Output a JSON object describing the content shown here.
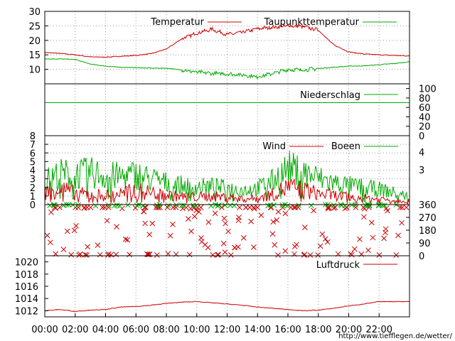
{
  "colors": {
    "temperature": "#cc0000",
    "dewpoint": "#00aa00",
    "precipitation": "#00aa00",
    "wind": "#cc0000",
    "gusts": "#00aa00",
    "direction_wind": "#cc0000",
    "direction_gusts": "#00aa00",
    "pressure": "#cc0000",
    "frame": "#000000",
    "grid": "#999999",
    "url": "#cc0000"
  },
  "footer_url": "http://www.tiefflegen.de/wetter/",
  "x_ticks": [
    "00:00",
    "02:00",
    "04:00",
    "06:00",
    "08:00",
    "10:00",
    "12:00",
    "14:00",
    "16:00",
    "18:00",
    "20:00",
    "22:00"
  ],
  "chart_data": [
    {
      "id": "temperature",
      "type": "line",
      "x": [
        "00:00",
        "01:00",
        "02:00",
        "03:00",
        "04:00",
        "05:00",
        "06:00",
        "07:00",
        "08:00",
        "09:00",
        "10:00",
        "11:00",
        "12:00",
        "13:00",
        "14:00",
        "15:00",
        "16:00",
        "17:00",
        "18:00",
        "19:00",
        "20:00",
        "21:00",
        "22:00",
        "23:00",
        "24:00"
      ],
      "series": [
        {
          "name": "Temperatur",
          "values": [
            15.8,
            15.5,
            15.0,
            14.3,
            14.2,
            14.5,
            14.8,
            15.4,
            17.0,
            20.5,
            22.5,
            23.8,
            22.0,
            22.8,
            24.0,
            24.5,
            25.0,
            24.8,
            23.5,
            18.5,
            16.0,
            15.3,
            15.0,
            14.8,
            14.6
          ]
        },
        {
          "name": "Taupunkttemperatur",
          "values": [
            13.6,
            13.6,
            13.4,
            11.8,
            11.1,
            10.7,
            10.6,
            10.4,
            10.4,
            9.8,
            9.0,
            8.6,
            8.4,
            8.1,
            7.4,
            8.6,
            9.9,
            9.8,
            10.3,
            10.7,
            11.1,
            11.2,
            11.6,
            12.0,
            12.6
          ]
        }
      ],
      "ylim": [
        5,
        30
      ],
      "yticks": [
        10,
        15,
        20,
        25,
        30
      ],
      "grid": true,
      "legend": "top-right"
    },
    {
      "id": "precipitation",
      "type": "line",
      "series": [
        {
          "name": "Niederschlag",
          "values": [
            70,
            70
          ]
        }
      ],
      "x": [
        "00:00",
        "24:00"
      ],
      "ylim": [
        0,
        110
      ],
      "yticks_right": [
        0,
        20,
        40,
        60,
        80,
        100
      ],
      "legend": "top-right"
    },
    {
      "id": "wind",
      "type": "line",
      "x_range": [
        "00:00",
        "24:00"
      ],
      "series": [
        {
          "name": "Wind",
          "values": [
            1.4,
            1.8,
            1.2,
            1.1,
            1.0,
            1.2,
            1.5,
            1.3,
            1.0,
            0.9,
            0.8,
            0.9,
            0.8,
            0.6,
            0.7,
            1.1,
            1.9,
            1.6,
            1.2,
            1.0,
            0.8,
            0.7,
            0.6,
            0.5,
            0.4
          ]
        },
        {
          "name": "Boeen",
          "values": [
            2.6,
            3.4,
            3.3,
            3.5,
            3.2,
            3.1,
            3.3,
            2.8,
            2.4,
            2.1,
            1.9,
            2.0,
            1.8,
            1.6,
            1.8,
            2.6,
            4.0,
            3.5,
            2.9,
            2.4,
            2.1,
            1.9,
            1.7,
            1.3,
            0.9
          ]
        }
      ],
      "ylim": [
        0,
        8
      ],
      "yticks": [
        0,
        1,
        2,
        3,
        4,
        5,
        6,
        7,
        8
      ],
      "right_labels": [
        "4",
        "3"
      ],
      "grid": true,
      "legend": "top-right"
    },
    {
      "id": "direction",
      "type": "scatter",
      "ylim": [
        0,
        360
      ],
      "yticks_right": [
        0,
        90,
        180,
        270,
        360
      ]
    },
    {
      "id": "pressure",
      "type": "line",
      "x": [
        "00:00",
        "01:00",
        "02:00",
        "03:00",
        "04:00",
        "05:00",
        "06:00",
        "07:00",
        "08:00",
        "09:00",
        "10:00",
        "11:00",
        "12:00",
        "13:00",
        "14:00",
        "15:00",
        "16:00",
        "17:00",
        "18:00",
        "19:00",
        "20:00",
        "21:00",
        "22:00",
        "23:00",
        "24:00"
      ],
      "series": [
        {
          "name": "Luftdruck",
          "values": [
            1012.0,
            1012.2,
            1011.9,
            1012.1,
            1012.2,
            1012.6,
            1012.7,
            1012.9,
            1013.2,
            1013.4,
            1013.5,
            1013.3,
            1013.1,
            1012.9,
            1012.6,
            1012.4,
            1012.2,
            1012.0,
            1012.1,
            1012.4,
            1012.8,
            1013.1,
            1013.5,
            1013.5,
            1013.5
          ]
        }
      ],
      "ylim": [
        1011,
        1021
      ],
      "yticks": [
        1012,
        1014,
        1016,
        1018,
        1020
      ],
      "legend": "top-right"
    }
  ]
}
